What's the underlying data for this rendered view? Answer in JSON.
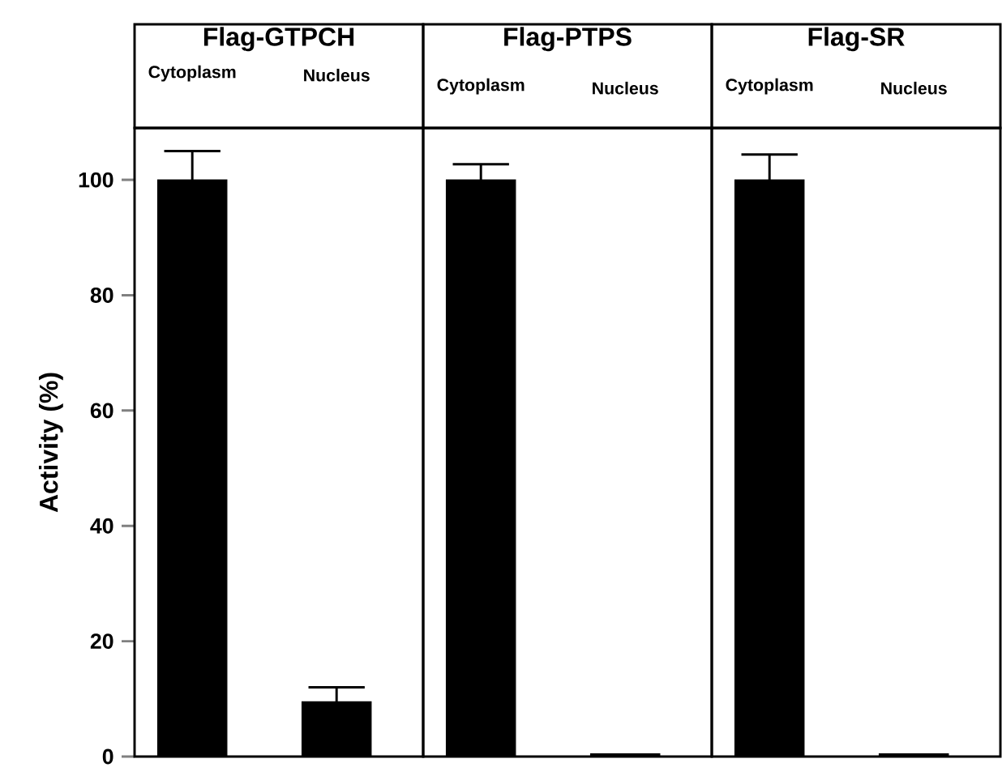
{
  "chart_data": [
    {
      "type": "bar",
      "title": "Flag-GTPCH",
      "ylabel": "Activity (%)",
      "categories": [
        "Cytoplasm",
        "Nucleus"
      ],
      "values": [
        100,
        9.5
      ],
      "errors": [
        5,
        2.5
      ],
      "color": "#000000",
      "ylim": [
        0,
        109
      ],
      "yticks": [
        0,
        20,
        40,
        60,
        80,
        100
      ]
    },
    {
      "type": "bar",
      "title": "Flag-PTPS",
      "categories": [
        "Cytoplasm",
        "Nucleus"
      ],
      "values": [
        100,
        0.5
      ],
      "errors": [
        2.7,
        null
      ],
      "color": "#000000",
      "ylim": [
        0,
        109
      ],
      "tick_labels": "x"
    },
    {
      "type": "bar",
      "title": "Flag-SR",
      "categories": [
        "Cytoplasm",
        "Nucleus"
      ],
      "values": [
        100,
        0.5
      ],
      "errors": [
        4.4,
        null
      ],
      "color": "#000000",
      "ylim": [
        0,
        109
      ],
      "tick_labels": "x"
    }
  ]
}
